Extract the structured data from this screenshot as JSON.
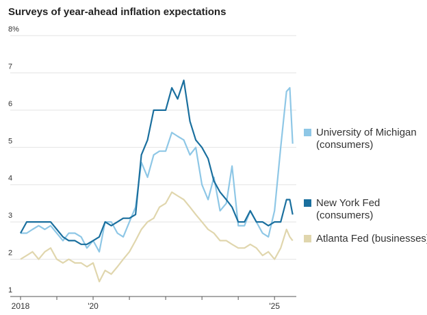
{
  "chart_data": {
    "type": "line",
    "title": "Surveys of year-ahead inflation expectations",
    "x": [
      2018,
      2018.17,
      2018.33,
      2018.5,
      2018.67,
      2018.83,
      2019,
      2019.17,
      2019.33,
      2019.5,
      2019.67,
      2019.83,
      2020,
      2020.17,
      2020.33,
      2020.5,
      2020.67,
      2020.83,
      2021,
      2021.17,
      2021.33,
      2021.5,
      2021.67,
      2021.83,
      2022,
      2022.17,
      2022.33,
      2022.5,
      2022.67,
      2022.83,
      2023,
      2023.17,
      2023.33,
      2023.5,
      2023.67,
      2023.83,
      2024,
      2024.17,
      2024.33,
      2024.5,
      2024.67,
      2024.83,
      2025,
      2025.17,
      2025.33,
      2025.42,
      2025.5
    ],
    "series": [
      {
        "name": "University of Michigan (consumers)",
        "color": "#8ec7e6",
        "values": [
          2.7,
          2.7,
          2.8,
          2.9,
          2.8,
          2.9,
          2.7,
          2.5,
          2.7,
          2.7,
          2.6,
          2.3,
          2.5,
          2.2,
          3.0,
          3.0,
          2.7,
          2.6,
          3.0,
          3.4,
          4.6,
          4.2,
          4.8,
          4.9,
          4.9,
          5.4,
          5.3,
          5.2,
          4.8,
          5.0,
          4.0,
          3.6,
          4.2,
          3.3,
          3.5,
          4.5,
          2.9,
          2.9,
          3.3,
          3.0,
          2.7,
          2.6,
          3.3,
          5.0,
          6.5,
          6.6,
          5.1
        ]
      },
      {
        "name": "New York Fed (consumers)",
        "color": "#1a6f9e",
        "values": [
          2.7,
          3.0,
          3.0,
          3.0,
          3.0,
          3.0,
          2.8,
          2.6,
          2.5,
          2.5,
          2.4,
          2.4,
          2.5,
          2.6,
          3.0,
          2.9,
          3.0,
          3.1,
          3.1,
          3.2,
          4.8,
          5.2,
          6.0,
          6.0,
          6.0,
          6.6,
          6.3,
          6.8,
          5.7,
          5.2,
          5.0,
          4.7,
          4.1,
          3.8,
          3.6,
          3.4,
          3.0,
          3.0,
          3.3,
          3.0,
          3.0,
          2.9,
          3.0,
          3.0,
          3.6,
          3.6,
          3.2
        ]
      },
      {
        "name": "Atlanta Fed (businesses)",
        "color": "#e0d6ad",
        "values": [
          2.0,
          2.1,
          2.2,
          2.0,
          2.2,
          2.3,
          2.0,
          1.9,
          2.0,
          1.9,
          1.9,
          1.8,
          1.9,
          1.4,
          1.7,
          1.6,
          1.8,
          2.0,
          2.2,
          2.5,
          2.8,
          3.0,
          3.1,
          3.4,
          3.5,
          3.8,
          3.7,
          3.6,
          3.4,
          3.2,
          3.0,
          2.8,
          2.7,
          2.5,
          2.5,
          2.4,
          2.3,
          2.3,
          2.4,
          2.3,
          2.1,
          2.2,
          2.0,
          2.3,
          2.8,
          2.6,
          2.5
        ]
      }
    ],
    "xlim": [
      2018,
      2025.6
    ],
    "xticks": [
      2018,
      {
        "value": 2019,
        "label": null
      },
      {
        "value": 2020,
        "label": "'20"
      },
      {
        "value": 2021,
        "label": null
      },
      {
        "value": 2022,
        "label": null
      },
      {
        "value": 2023,
        "label": null
      },
      {
        "value": 2024,
        "label": null
      },
      {
        "value": 2025,
        "label": "'25"
      }
    ],
    "ylim": [
      1,
      8
    ],
    "yticks": [
      1,
      2,
      3,
      4,
      5,
      6,
      7,
      {
        "value": 8,
        "label": "8%"
      }
    ],
    "grid": true
  }
}
